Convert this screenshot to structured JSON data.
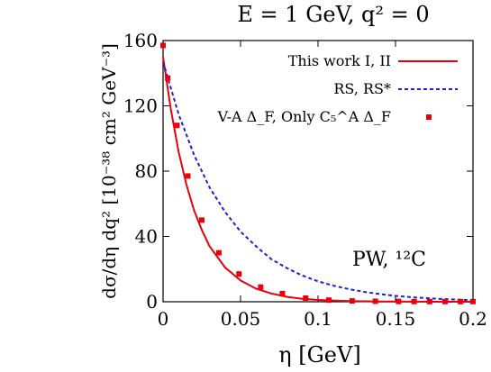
{
  "chart_data": {
    "type": "line",
    "title": "E = 1 GeV, q² = 0",
    "xlabel": "η [GeV]",
    "ylabel": "dσ/dη dq² [10⁻³⁸ cm² GeV⁻³]",
    "xlim": [
      0,
      0.2
    ],
    "ylim": [
      0,
      160
    ],
    "xticks": [
      0,
      0.05,
      0.1,
      0.15,
      0.2
    ],
    "xtick_labels": [
      "0",
      "0.05",
      "0.1",
      "0.15",
      "0.2"
    ],
    "yticks": [
      0,
      40,
      80,
      120,
      160
    ],
    "ytick_labels": [
      "0",
      "40",
      "80",
      "120",
      "160"
    ],
    "legend_position": "top-right",
    "annotation": "PW, ¹²C",
    "series": [
      {
        "name": "This work I, II",
        "style": "solid",
        "color": "#e8000b",
        "x": [
          0,
          0.005,
          0.01,
          0.015,
          0.02,
          0.025,
          0.03,
          0.04,
          0.05,
          0.06,
          0.07,
          0.08,
          0.09,
          0.1,
          0.12,
          0.14,
          0.16,
          0.18,
          0.2
        ],
        "y": [
          150,
          118,
          92,
          72,
          56,
          44,
          34,
          21,
          13,
          8,
          5,
          3,
          1.8,
          1.1,
          0.4,
          0.15,
          0.05,
          0.02,
          0.01
        ]
      },
      {
        "name": "RS, RS*",
        "style": "dashed",
        "color": "#1f1fd8",
        "x": [
          0,
          0.01,
          0.02,
          0.03,
          0.04,
          0.05,
          0.06,
          0.07,
          0.08,
          0.09,
          0.1,
          0.11,
          0.12,
          0.13,
          0.14,
          0.15,
          0.16,
          0.17,
          0.18,
          0.19,
          0.2
        ],
        "y": [
          147,
          115,
          90,
          70,
          55,
          43,
          34,
          26,
          20.5,
          16,
          12.5,
          9.8,
          7.7,
          6,
          4.7,
          3.6,
          2.8,
          2.2,
          1.7,
          1.3,
          1
        ]
      },
      {
        "name": "V-A Δ_F, Only C₅^A Δ_F",
        "style": "markers",
        "color": "#e8000b",
        "x": [
          0,
          0.003,
          0.009,
          0.016,
          0.025,
          0.036,
          0.049,
          0.063,
          0.077,
          0.092,
          0.107,
          0.122,
          0.137,
          0.152,
          0.162,
          0.172,
          0.182,
          0.192,
          0.2
        ],
        "y": [
          157,
          137,
          108,
          77,
          50,
          30,
          17,
          9,
          5,
          2.2,
          1,
          0.5,
          0.3,
          0.2,
          0.1,
          0.1,
          0.1,
          0.1,
          0.1
        ]
      }
    ]
  }
}
